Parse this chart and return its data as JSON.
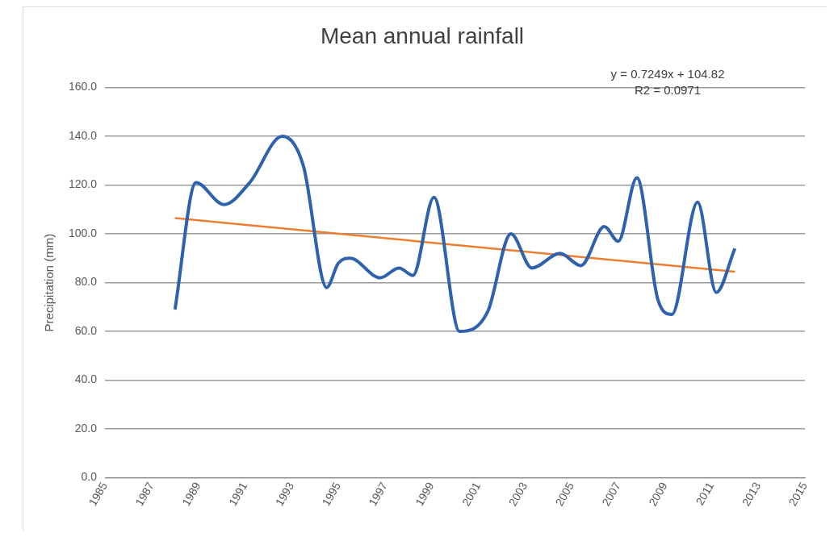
{
  "chart_data": {
    "type": "line",
    "title": "Mean annual rainfall",
    "ylabel": "Precipitation (mm)",
    "annotations": [
      "y = 0.7249x + 104.82",
      "R2 = 0.0971"
    ],
    "series": [
      {
        "color": "#2e62ad",
        "x": [
          1988,
          1988.9,
          1990.1,
          1991.2,
          1992.6,
          1993.5,
          1994.5,
          1995,
          1995.5,
          1996.8,
          1997.6,
          1998.2,
          1999.1,
          2000.2,
          2001.4,
          2002.4,
          2003.3,
          2004.5,
          2005.4,
          2006.4,
          2007,
          2007.8,
          2008.7,
          2009.3,
          2010.4,
          2011.2,
          2012
        ],
        "values": [
          69,
          121,
          112,
          121,
          140,
          128,
          78,
          88,
          90,
          82,
          86,
          83,
          115,
          60,
          68,
          100,
          86,
          92,
          87,
          103,
          97,
          123,
          73,
          67,
          113,
          76,
          94
        ]
      },
      {
        "type": "line",
        "color": "#ed7d31",
        "x": [
          1988,
          2012
        ],
        "values": [
          106.5,
          84.5
        ]
      }
    ],
    "xlim": [
      1985,
      2015
    ],
    "xticks": [
      1985,
      1987,
      1989,
      1991,
      1993,
      1995,
      1997,
      1999,
      2001,
      2003,
      2005,
      2007,
      2009,
      2011,
      2013,
      2015
    ],
    "ylim": [
      0,
      160
    ],
    "yticks": [
      {
        "value": 0,
        "label": "0.0"
      },
      {
        "value": 20,
        "label": "20.0"
      },
      {
        "value": 40,
        "label": "40.0"
      },
      {
        "value": 60,
        "label": "60.0"
      },
      {
        "value": 80,
        "label": "80.0"
      },
      {
        "value": 100,
        "label": "100.0"
      },
      {
        "value": 120,
        "label": "120.0"
      },
      {
        "value": 140,
        "label": "140.0"
      },
      {
        "value": 160,
        "label": "160.0"
      }
    ],
    "grid": "y",
    "marker": "none",
    "line_style": "solid"
  }
}
